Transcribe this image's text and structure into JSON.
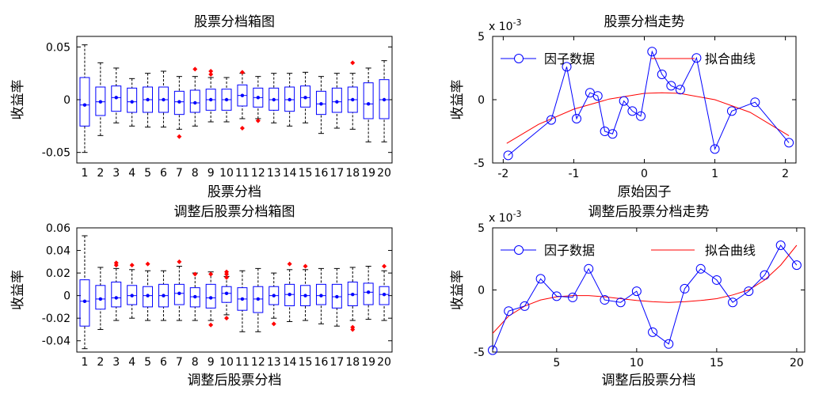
{
  "chart_data": [
    {
      "type": "box",
      "title": "股票分档箱图",
      "xlabel": "股票分档",
      "ylabel": "收益率",
      "categories": [
        "1",
        "2",
        "3",
        "4",
        "5",
        "6",
        "7",
        "8",
        "9",
        "10",
        "11",
        "12",
        "13",
        "14",
        "15",
        "16",
        "17",
        "18",
        "19",
        "20"
      ],
      "ylim": [
        -0.06,
        0.06
      ],
      "yticks": [
        -0.05,
        0,
        0.05
      ],
      "ytick_labels": [
        "-0.05",
        "0",
        "0.05"
      ],
      "median": [
        -0.005,
        -0.002,
        0.002,
        -0.002,
        0.0,
        0.0,
        -0.002,
        -0.003,
        0.0,
        0.0,
        0.004,
        0.002,
        0.0,
        0.0,
        0.002,
        -0.004,
        -0.002,
        0.0,
        -0.004,
        0.0
      ],
      "q1": [
        -0.025,
        -0.015,
        -0.011,
        -0.012,
        -0.012,
        -0.012,
        -0.014,
        -0.012,
        -0.01,
        -0.01,
        -0.006,
        -0.007,
        -0.01,
        -0.011,
        -0.007,
        -0.014,
        -0.012,
        -0.012,
        -0.018,
        -0.018
      ],
      "q3": [
        0.021,
        0.012,
        0.013,
        0.011,
        0.012,
        0.012,
        0.008,
        0.009,
        0.01,
        0.01,
        0.014,
        0.011,
        0.011,
        0.012,
        0.013,
        0.008,
        0.011,
        0.012,
        0.016,
        0.019
      ],
      "whisker_low": [
        -0.05,
        -0.034,
        -0.022,
        -0.025,
        -0.026,
        -0.026,
        -0.028,
        -0.025,
        -0.021,
        -0.021,
        -0.018,
        -0.018,
        -0.022,
        -0.025,
        -0.022,
        -0.032,
        -0.027,
        -0.028,
        -0.04,
        -0.04
      ],
      "whisker_high": [
        0.052,
        0.035,
        0.03,
        0.02,
        0.025,
        0.027,
        0.022,
        0.022,
        0.021,
        0.021,
        0.025,
        0.022,
        0.025,
        0.025,
        0.026,
        0.022,
        0.025,
        0.025,
        0.03,
        0.037
      ],
      "outliers": [
        [],
        [],
        [],
        [],
        [],
        [],
        [
          -0.035
        ],
        [
          0.029
        ],
        [
          0.027,
          0.024
        ],
        [],
        [
          0.026,
          -0.027
        ],
        [
          -0.02
        ],
        [],
        [],
        [],
        [],
        [],
        [
          0.035
        ],
        [],
        []
      ],
      "median_color": "#0000ff",
      "box_color": "#0000ff",
      "whisker_color": "#000000",
      "outlier_color": "#ff0000"
    },
    {
      "type": "line",
      "title": "股票分档走势",
      "xlabel": "原始因子",
      "ylabel": "收益率",
      "exponent_label": "x 10",
      "exponent_power": "-3",
      "xlim": [
        -2.15,
        2.15
      ],
      "ylim": [
        -5,
        5
      ],
      "xticks": [
        -2,
        -1,
        0,
        1,
        2
      ],
      "xtick_labels": [
        "-2",
        "-1",
        "0",
        "1",
        "2"
      ],
      "yticks": [
        -5,
        0,
        5
      ],
      "ytick_labels": [
        "-5",
        "0",
        "5"
      ],
      "legend_position": "top",
      "series": [
        {
          "name": "因子数据",
          "color": "#0000ff",
          "marker": "circle",
          "x": [
            -1.93,
            -1.32,
            -1.1,
            -0.96,
            -0.77,
            -0.66,
            -0.56,
            -0.45,
            -0.29,
            -0.17,
            -0.05,
            0.11,
            0.25,
            0.38,
            0.51,
            0.74,
            1.0,
            1.24,
            1.57,
            2.05
          ],
          "y": [
            -4.4,
            -1.6,
            2.6,
            -1.5,
            0.55,
            0.3,
            -2.5,
            -2.7,
            -0.1,
            -0.9,
            -1.3,
            3.8,
            2.0,
            1.1,
            0.8,
            3.3,
            -3.9,
            -0.9,
            -0.2,
            -3.4
          ]
        },
        {
          "name": "拟合曲线",
          "color": "#ff0000",
          "marker": "none",
          "x": [
            -1.95,
            -1.5,
            -1.0,
            -0.5,
            0,
            0.25,
            0.5,
            1.0,
            1.5,
            2.05
          ],
          "y": [
            -3.45,
            -1.95,
            -0.75,
            0.05,
            0.5,
            0.55,
            0.5,
            0.0,
            -1.0,
            -2.85
          ]
        }
      ]
    },
    {
      "type": "box",
      "title": "调整后股票分档箱图",
      "xlabel": "调整后股票分档",
      "ylabel": "收益率",
      "categories": [
        "1",
        "2",
        "3",
        "4",
        "5",
        "6",
        "7",
        "8",
        "9",
        "10",
        "11",
        "12",
        "13",
        "14",
        "15",
        "16",
        "17",
        "18",
        "19",
        "20"
      ],
      "ylim": [
        -0.05,
        0.06
      ],
      "yticks": [
        -0.04,
        -0.02,
        0,
        0.02,
        0.04,
        0.06
      ],
      "ytick_labels": [
        "-0.04",
        "-0.02",
        "0",
        "0.02",
        "0.04",
        "0.06"
      ],
      "median": [
        -0.005,
        -0.003,
        -0.002,
        0.0,
        0.0,
        0.0,
        0.002,
        -0.001,
        -0.002,
        0.002,
        -0.003,
        -0.003,
        0.0,
        0.001,
        0.0,
        0.0,
        -0.001,
        0.001,
        0.003,
        0.001
      ],
      "q1": [
        -0.027,
        -0.012,
        -0.01,
        -0.008,
        -0.01,
        -0.01,
        -0.008,
        -0.01,
        -0.011,
        -0.006,
        -0.013,
        -0.015,
        -0.008,
        -0.009,
        -0.009,
        -0.008,
        -0.011,
        -0.009,
        -0.008,
        -0.008
      ],
      "q3": [
        0.014,
        0.009,
        0.012,
        0.009,
        0.008,
        0.01,
        0.01,
        0.007,
        0.01,
        0.008,
        0.007,
        0.008,
        0.008,
        0.01,
        0.009,
        0.01,
        0.01,
        0.012,
        0.011,
        0.008
      ],
      "whisker_low": [
        -0.047,
        -0.03,
        -0.022,
        -0.02,
        -0.022,
        -0.022,
        -0.022,
        -0.022,
        -0.022,
        -0.017,
        -0.032,
        -0.032,
        -0.02,
        -0.023,
        -0.022,
        -0.025,
        -0.027,
        -0.022,
        -0.021,
        -0.022
      ],
      "whisker_high": [
        0.053,
        0.025,
        0.024,
        0.023,
        0.022,
        0.022,
        0.026,
        0.02,
        0.021,
        0.017,
        0.022,
        0.024,
        0.02,
        0.023,
        0.023,
        0.024,
        0.024,
        0.025,
        0.026,
        0.022
      ],
      "outliers": [
        [],
        [],
        [
          0.027,
          0.029
        ],
        [
          0.027
        ],
        [
          0.028
        ],
        [],
        [
          0.03
        ],
        [
          0.019
        ],
        [
          -0.026,
          0.019
        ],
        [
          -0.02,
          0.016,
          0.019,
          0.021
        ],
        [],
        [],
        [
          -0.025
        ],
        [
          0.028
        ],
        [
          0.026
        ],
        [],
        [],
        [
          -0.028,
          -0.03
        ],
        [],
        [
          0.026
        ]
      ],
      "median_color": "#0000ff",
      "box_color": "#0000ff",
      "whisker_color": "#000000",
      "outlier_color": "#ff0000"
    },
    {
      "type": "line",
      "title": "调整后股票分档走势",
      "xlabel": "调整后股票分档",
      "ylabel": "收益率",
      "exponent_label": "x 10",
      "exponent_power": "-3",
      "xlim": [
        1,
        20.5
      ],
      "ylim": [
        -5,
        5
      ],
      "xticks": [
        5,
        10,
        15,
        20
      ],
      "xtick_labels": [
        "5",
        "10",
        "15",
        "20"
      ],
      "yticks": [
        -5,
        0,
        5
      ],
      "ytick_labels": [
        "-5",
        "0",
        "5"
      ],
      "legend_position": "top",
      "series": [
        {
          "name": "因子数据",
          "color": "#0000ff",
          "marker": "circle",
          "x": [
            1,
            2,
            3,
            4,
            5,
            6,
            7,
            8,
            9,
            10,
            11,
            12,
            13,
            14,
            15,
            16,
            17,
            18,
            19,
            20
          ],
          "y": [
            -4.85,
            -1.7,
            -1.3,
            0.9,
            -0.5,
            -0.6,
            1.7,
            -0.8,
            -1.0,
            -0.1,
            -3.4,
            -4.35,
            0.1,
            1.7,
            0.8,
            -1.0,
            -0.1,
            1.2,
            3.6,
            2.0
          ]
        },
        {
          "name": "拟合曲线",
          "color": "#ff0000",
          "marker": "none",
          "x": [
            1,
            2,
            3,
            4,
            5,
            6,
            7,
            8,
            9,
            10,
            11,
            12,
            13,
            14,
            15,
            16,
            17,
            18,
            19,
            20
          ],
          "y": [
            -3.5,
            -2.1,
            -1.3,
            -0.8,
            -0.55,
            -0.45,
            -0.45,
            -0.55,
            -0.7,
            -0.85,
            -0.95,
            -1.0,
            -0.95,
            -0.85,
            -0.7,
            -0.4,
            0.0,
            0.8,
            2.0,
            3.6
          ]
        }
      ]
    }
  ]
}
